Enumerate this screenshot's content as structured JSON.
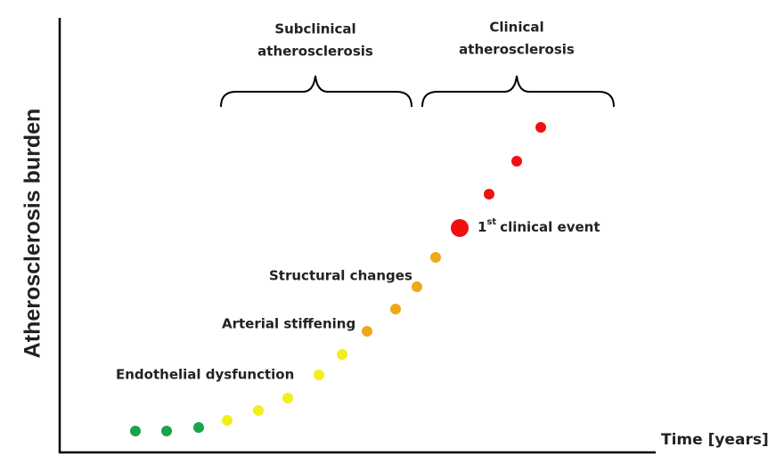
{
  "axes": {
    "y_label": "Atherosclerosis burden",
    "x_label": "Time [years]"
  },
  "phases": [
    {
      "lines": [
        "Subclinical",
        "atherosclerosis"
      ]
    },
    {
      "lines": [
        "Clinical",
        "atherosclerosis"
      ]
    }
  ],
  "stages": [
    "Endothelial dysfunction",
    "Arterial stiffening",
    "Structural changes"
  ],
  "event": {
    "number": "1",
    "suffix": "st",
    "text": "clinical event"
  }
}
